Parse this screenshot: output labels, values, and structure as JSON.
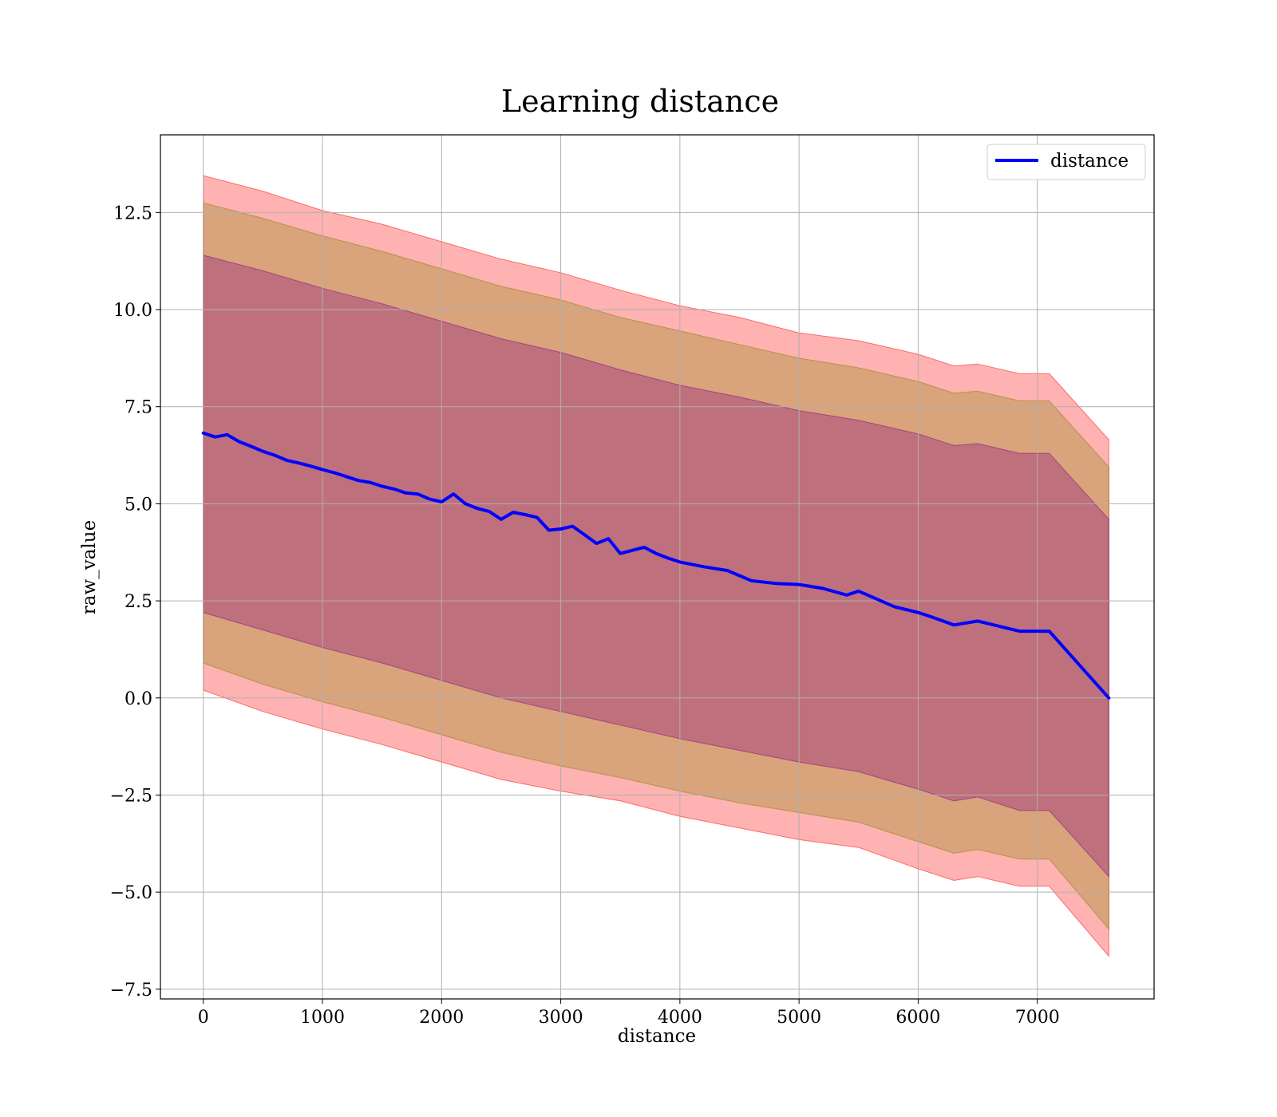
{
  "chart_data": {
    "type": "line",
    "title": "Learning distance",
    "xlabel": "distance",
    "ylabel": "raw_value",
    "xlim": [
      -360,
      7980
    ],
    "ylim": [
      -7.75,
      14.5
    ],
    "xticks": [
      0,
      1000,
      2000,
      3000,
      4000,
      5000,
      6000,
      7000
    ],
    "xtick_labels": [
      "0",
      "1000",
      "2000",
      "3000",
      "4000",
      "5000",
      "6000",
      "7000"
    ],
    "yticks": [
      -7.5,
      -5.0,
      -2.5,
      0.0,
      2.5,
      5.0,
      7.5,
      10.0,
      12.5
    ],
    "ytick_labels": [
      "−7.5",
      "−5.0",
      "−2.5",
      "0.0",
      "2.5",
      "5.0",
      "7.5",
      "10.0",
      "12.5"
    ],
    "grid": true,
    "legend": {
      "position": "upper right",
      "entries": [
        "distance"
      ]
    },
    "series": [
      {
        "name": "distance",
        "color": "#0000ff",
        "x": [
          0,
          100,
          200,
          300,
          400,
          500,
          600,
          700,
          800,
          900,
          1000,
          1100,
          1200,
          1300,
          1400,
          1500,
          1600,
          1700,
          1800,
          1900,
          2000,
          2100,
          2200,
          2300,
          2400,
          2500,
          2600,
          2700,
          2800,
          2900,
          3000,
          3100,
          3200,
          3300,
          3400,
          3500,
          3600,
          3700,
          3800,
          3900,
          4000,
          4200,
          4400,
          4600,
          4800,
          5000,
          5200,
          5400,
          5500,
          5650,
          5800,
          6000,
          6100,
          6300,
          6500,
          6850,
          7100,
          7600
        ],
        "y": [
          6.82,
          6.72,
          6.78,
          6.6,
          6.48,
          6.35,
          6.25,
          6.12,
          6.05,
          5.97,
          5.88,
          5.8,
          5.7,
          5.6,
          5.55,
          5.45,
          5.38,
          5.28,
          5.25,
          5.12,
          5.05,
          5.25,
          5.0,
          4.88,
          4.8,
          4.6,
          4.78,
          4.72,
          4.65,
          4.32,
          4.35,
          4.42,
          4.2,
          3.98,
          4.1,
          3.72,
          3.8,
          3.88,
          3.72,
          3.6,
          3.5,
          3.38,
          3.28,
          3.02,
          2.95,
          2.92,
          2.82,
          2.65,
          2.75,
          2.55,
          2.35,
          2.2,
          2.1,
          1.88,
          1.98,
          1.72,
          1.72,
          0.0
        ]
      },
      {
        "name": "",
        "role": "band",
        "color": "#ff0000",
        "opacity": 0.3,
        "x": [
          0,
          500,
          1000,
          1500,
          2000,
          2500,
          3000,
          3500,
          4000,
          4500,
          5000,
          5500,
          6000,
          6300,
          6500,
          6850,
          7100,
          7600
        ],
        "upper": [
          13.45,
          13.05,
          12.55,
          12.2,
          11.75,
          11.3,
          10.95,
          10.5,
          10.1,
          9.8,
          9.4,
          9.2,
          8.85,
          8.55,
          8.6,
          8.35,
          8.35,
          6.65
        ],
        "lower": [
          0.2,
          -0.35,
          -0.8,
          -1.2,
          -1.65,
          -2.1,
          -2.4,
          -2.65,
          -3.05,
          -3.35,
          -3.65,
          -3.85,
          -4.4,
          -4.7,
          -4.6,
          -4.85,
          -4.85,
          -6.65
        ]
      },
      {
        "name": "",
        "role": "band",
        "color": "#808000",
        "opacity": 0.3,
        "x": [
          0,
          500,
          1000,
          1500,
          2000,
          2500,
          3000,
          3500,
          4000,
          4500,
          5000,
          5500,
          6000,
          6300,
          6500,
          6850,
          7100,
          7600
        ],
        "upper": [
          12.75,
          12.35,
          11.9,
          11.5,
          11.05,
          10.6,
          10.25,
          9.8,
          9.45,
          9.1,
          8.75,
          8.5,
          8.15,
          7.85,
          7.9,
          7.65,
          7.65,
          5.95
        ],
        "lower": [
          0.9,
          0.35,
          -0.1,
          -0.5,
          -0.95,
          -1.4,
          -1.75,
          -2.05,
          -2.4,
          -2.7,
          -2.95,
          -3.2,
          -3.7,
          -4.0,
          -3.9,
          -4.15,
          -4.15,
          -5.95
        ]
      },
      {
        "name": "",
        "role": "band",
        "color": "#800080",
        "opacity": 0.3,
        "x": [
          0,
          500,
          1000,
          1500,
          2000,
          2500,
          3000,
          3500,
          4000,
          4500,
          5000,
          5500,
          6000,
          6300,
          6500,
          6850,
          7100,
          7600
        ],
        "upper": [
          11.4,
          11.0,
          10.55,
          10.15,
          9.7,
          9.25,
          8.9,
          8.45,
          8.05,
          7.75,
          7.4,
          7.15,
          6.8,
          6.5,
          6.55,
          6.3,
          6.3,
          4.6
        ],
        "lower": [
          2.2,
          1.75,
          1.3,
          0.9,
          0.45,
          0.0,
          -0.35,
          -0.7,
          -1.05,
          -1.35,
          -1.65,
          -1.9,
          -2.35,
          -2.65,
          -2.55,
          -2.9,
          -2.9,
          -4.6
        ]
      }
    ]
  }
}
